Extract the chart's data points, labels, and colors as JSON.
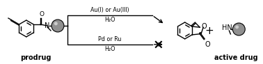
{
  "bg_color": "#ffffff",
  "line_color": "#000000",
  "text_prodrug": "prodrug",
  "text_active": "active drug",
  "text_au": "Au(I) or Au(III)",
  "text_h2o_top": "H₂O",
  "text_pd": "Pd or Ru",
  "text_h2o_bot": "H₂O",
  "figsize": [
    3.78,
    0.92
  ],
  "dpi": 100,
  "sphere_gray": "#909090",
  "sphere_highlight": "#ffffff"
}
